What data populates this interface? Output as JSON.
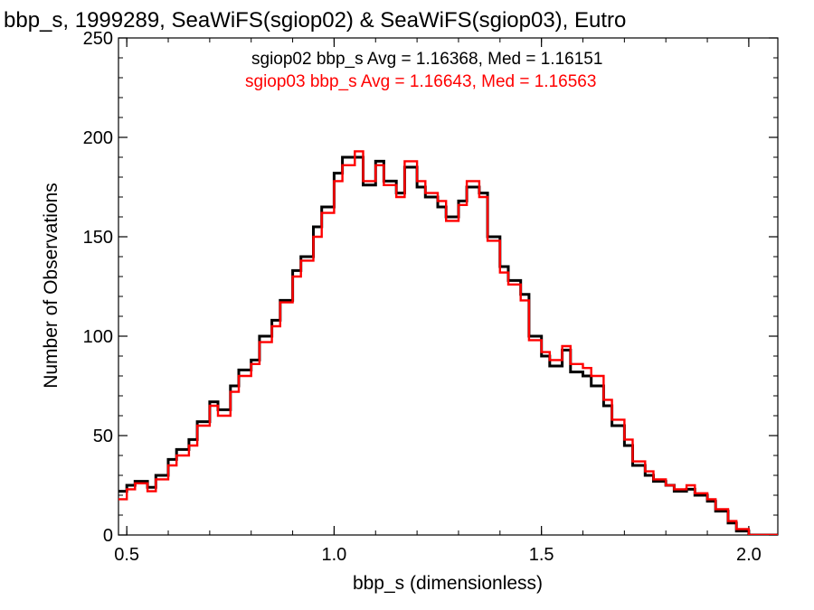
{
  "chart_data": {
    "type": "line",
    "title": "bbp_s, 1999289, SeaWiFS(sgiop02) & SeaWiFS(sgiop03), Eutro",
    "xlabel": "bbp_s (dimensionless)",
    "ylabel": "Number of Observations",
    "xlim": [
      0.48,
      2.07
    ],
    "ylim": [
      0,
      250
    ],
    "x_ticks": [
      "0.5",
      "1.0",
      "1.5",
      "2.0"
    ],
    "y_ticks": [
      "0",
      "50",
      "100",
      "150",
      "200",
      "250"
    ],
    "grid": false,
    "legend_placement": "top",
    "x": [
      0.48,
      0.5,
      0.52,
      0.55,
      0.57,
      0.6,
      0.62,
      0.65,
      0.67,
      0.7,
      0.72,
      0.75,
      0.77,
      0.8,
      0.82,
      0.85,
      0.87,
      0.9,
      0.92,
      0.95,
      0.97,
      1.0,
      1.02,
      1.05,
      1.07,
      1.1,
      1.12,
      1.15,
      1.17,
      1.2,
      1.22,
      1.25,
      1.27,
      1.3,
      1.32,
      1.35,
      1.37,
      1.4,
      1.42,
      1.45,
      1.47,
      1.5,
      1.52,
      1.55,
      1.57,
      1.6,
      1.62,
      1.65,
      1.67,
      1.7,
      1.72,
      1.75,
      1.77,
      1.8,
      1.82,
      1.85,
      1.87,
      1.9,
      1.92,
      1.95,
      1.97,
      2.0,
      2.03,
      2.07
    ],
    "series": [
      {
        "name": "sgiop02 bbp_s",
        "color": "#000000",
        "values": [
          22,
          25,
          27,
          24,
          30,
          38,
          43,
          48,
          57,
          67,
          63,
          75,
          83,
          88,
          100,
          108,
          118,
          133,
          140,
          155,
          165,
          182,
          190,
          190,
          176,
          188,
          178,
          172,
          185,
          175,
          170,
          165,
          160,
          168,
          175,
          172,
          150,
          135,
          128,
          121,
          100,
          90,
          85,
          93,
          82,
          80,
          75,
          65,
          55,
          45,
          35,
          30,
          27,
          25,
          22,
          23,
          20,
          17,
          12,
          6,
          2,
          0,
          0,
          0
        ]
      },
      {
        "name": "sgiop03 bbp_s",
        "color": "#ff0000",
        "values": [
          18,
          23,
          26,
          22,
          28,
          35,
          40,
          45,
          55,
          65,
          60,
          72,
          80,
          86,
          97,
          105,
          117,
          130,
          138,
          150,
          162,
          178,
          186,
          193,
          178,
          186,
          176,
          170,
          188,
          178,
          172,
          168,
          158,
          166,
          178,
          170,
          148,
          132,
          126,
          118,
          98,
          92,
          88,
          95,
          86,
          84,
          80,
          68,
          58,
          48,
          37,
          32,
          28,
          25,
          23,
          25,
          21,
          18,
          13,
          7,
          3,
          0,
          0,
          0
        ]
      }
    ],
    "annotations": [
      {
        "text": "sgiop02 bbp_s Avg = 1.16368, Med = 1.16151",
        "color": "#000000"
      },
      {
        "text": "sgiop03 bbp_s Avg = 1.16643, Med = 1.16563",
        "color": "#ff0000"
      }
    ]
  }
}
